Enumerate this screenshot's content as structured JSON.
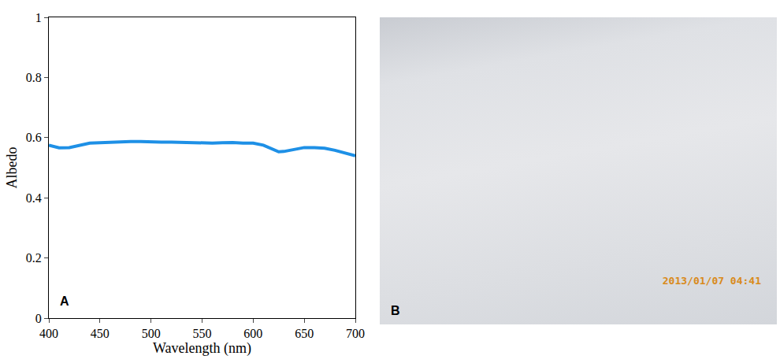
{
  "chart_data": {
    "type": "line",
    "x_label": "Wavelength (nm)",
    "y_label": "Albedo",
    "annotations": [
      "A"
    ],
    "x": [
      400,
      410,
      420,
      430,
      440,
      450,
      460,
      470,
      480,
      490,
      500,
      510,
      520,
      530,
      540,
      550,
      560,
      570,
      580,
      590,
      600,
      610,
      620,
      625,
      630,
      640,
      650,
      660,
      670,
      680,
      690,
      700
    ],
    "values": [
      0.575,
      0.566,
      0.567,
      0.575,
      0.582,
      0.583,
      0.585,
      0.586,
      0.587,
      0.587,
      0.585,
      0.585,
      0.585,
      0.584,
      0.584,
      0.583,
      0.582,
      0.583,
      0.584,
      0.582,
      0.582,
      0.575,
      0.56,
      0.553,
      0.554,
      0.56,
      0.567,
      0.567,
      0.565,
      0.558,
      0.55,
      0.54
    ],
    "color": "#1e90e6",
    "xlim": [
      400,
      700
    ],
    "xticks": [
      400,
      450,
      500,
      550,
      600,
      650,
      700
    ],
    "ylim": [
      0,
      1
    ],
    "yticks": [
      0,
      0.2,
      0.4,
      0.6,
      0.8,
      1
    ],
    "grid": false
  },
  "photo": {
    "label": "B",
    "timestamp": "2013/01/07 04:41"
  }
}
